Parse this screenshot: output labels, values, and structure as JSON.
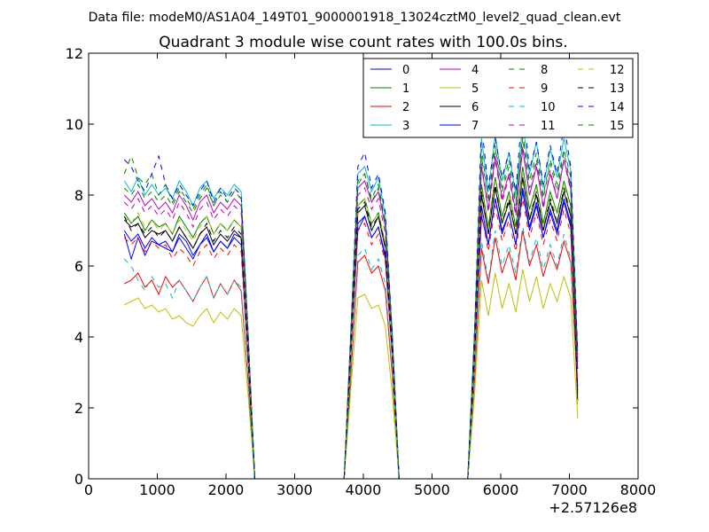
{
  "figure": {
    "suptitle": "Data file: modeM0/AS1A04_149T01_9000001918_13024cztM0_level2_quad_clean.evt"
  },
  "chart_data": {
    "type": "line",
    "title": "Quadrant 3 module wise count rates with 100.0s bins.",
    "xlabel": "",
    "ylabel": "",
    "xlim": [
      0,
      8000
    ],
    "ylim": [
      0,
      12
    ],
    "x_offset_label": "+2.57126e8",
    "xticks": [
      0,
      1000,
      2000,
      3000,
      4000,
      5000,
      6000,
      7000,
      8000
    ],
    "xtick_labels": [
      "0",
      "1000",
      "2000",
      "3000",
      "4000",
      "5000",
      "6000",
      "7000",
      "8000"
    ],
    "yticks": [
      0,
      2,
      4,
      6,
      8,
      10,
      12
    ],
    "ytick_labels": [
      "0",
      "2",
      "4",
      "6",
      "8",
      "10",
      "12"
    ],
    "legend_position": "top-right",
    "legend_columns": 4,
    "x": [
      520,
      620,
      720,
      820,
      920,
      1020,
      1120,
      1220,
      1320,
      1420,
      1520,
      1620,
      1720,
      1820,
      1920,
      2020,
      2120,
      2220,
      2320,
      2420,
      2520,
      2620,
      2720,
      2820,
      2920,
      3020,
      3120,
      3220,
      3320,
      3420,
      3520,
      3620,
      3720,
      3820,
      3920,
      4020,
      4120,
      4220,
      4320,
      4420,
      4520,
      4620,
      4720,
      4820,
      4920,
      5020,
      5120,
      5220,
      5320,
      5420,
      5520,
      5620,
      5720,
      5820,
      5920,
      6020,
      6120,
      6220,
      6320,
      6420,
      6520,
      6620,
      6720,
      6820,
      6920,
      7020,
      7120
    ],
    "series": [
      {
        "name": "0",
        "color": "#0000ff",
        "dash": "solid",
        "values": [
          6.9,
          6.2,
          6.8,
          6.3,
          6.7,
          6.6,
          6.5,
          6.4,
          6.9,
          6.7,
          6.3,
          6.6,
          6.8,
          6.4,
          6.7,
          6.5,
          6.9,
          6.8,
          3.5,
          0,
          0,
          0,
          0,
          0,
          0,
          0,
          0,
          0,
          0,
          0,
          0,
          0,
          0,
          3.7,
          7.0,
          7.4,
          6.8,
          7.1,
          6.2,
          3.5,
          0,
          0,
          0,
          0,
          0,
          0,
          0,
          0,
          0,
          0,
          0,
          3.5,
          7.4,
          6.6,
          7.9,
          7.0,
          7.5,
          6.6,
          8.2,
          7.1,
          7.8,
          6.8,
          7.6,
          7.0,
          7.9,
          7.2,
          3.1
        ]
      },
      {
        "name": "1",
        "color": "#008000",
        "dash": "solid",
        "values": [
          7.5,
          7.2,
          7.4,
          7.0,
          7.3,
          7.1,
          7.2,
          6.9,
          7.4,
          7.1,
          6.8,
          7.2,
          7.4,
          6.9,
          7.2,
          7.0,
          7.3,
          7.1,
          3.7,
          0,
          0,
          0,
          0,
          0,
          0,
          0,
          0,
          0,
          0,
          0,
          0,
          0,
          0,
          3.9,
          7.7,
          7.9,
          7.2,
          7.5,
          6.6,
          3.7,
          0,
          0,
          0,
          0,
          0,
          0,
          0,
          0,
          0,
          0,
          0,
          3.6,
          8.3,
          7.1,
          8.5,
          7.4,
          8.1,
          7.1,
          8.8,
          7.6,
          8.3,
          7.2,
          8.1,
          7.5,
          8.4,
          7.7,
          3.3
        ]
      },
      {
        "name": "2",
        "color": "#ff0000",
        "dash": "solid",
        "values": [
          5.5,
          5.6,
          5.8,
          5.4,
          5.6,
          5.2,
          5.7,
          5.4,
          5.6,
          5.3,
          5.0,
          5.4,
          5.7,
          5.1,
          5.5,
          5.2,
          5.6,
          5.3,
          2.8,
          0,
          0,
          0,
          0,
          0,
          0,
          0,
          0,
          0,
          0,
          0,
          0,
          0,
          0,
          3.0,
          6.1,
          6.3,
          5.8,
          6.0,
          5.3,
          2.9,
          0,
          0,
          0,
          0,
          0,
          0,
          0,
          0,
          0,
          0,
          0,
          2.8,
          6.5,
          5.5,
          6.8,
          5.8,
          6.4,
          5.6,
          7.0,
          6.0,
          6.6,
          5.7,
          6.4,
          5.9,
          6.7,
          6.1,
          2.5
        ]
      },
      {
        "name": "3",
        "color": "#00bfbf",
        "dash": "solid",
        "values": [
          8.4,
          8.1,
          8.5,
          8.0,
          8.3,
          8.0,
          8.2,
          7.9,
          8.4,
          8.1,
          7.7,
          8.2,
          8.4,
          7.9,
          8.2,
          8.0,
          8.3,
          8.1,
          4.2,
          0,
          0,
          0,
          0,
          0,
          0,
          0,
          0,
          0,
          0,
          0,
          0,
          0,
          0,
          4.3,
          8.6,
          8.8,
          8.1,
          8.5,
          7.4,
          4.1,
          0,
          0,
          0,
          0,
          0,
          0,
          0,
          0,
          0,
          0,
          0,
          4.2,
          9.6,
          8.1,
          9.7,
          8.4,
          9.2,
          8.0,
          10.0,
          8.6,
          9.5,
          8.2,
          9.3,
          8.5,
          9.6,
          8.7,
          3.6
        ]
      },
      {
        "name": "4",
        "color": "#bf00bf",
        "dash": "solid",
        "values": [
          8.0,
          7.8,
          8.1,
          7.7,
          7.9,
          7.6,
          7.8,
          7.5,
          8.0,
          7.7,
          7.3,
          7.8,
          8.0,
          7.5,
          7.8,
          7.6,
          7.9,
          7.7,
          4.0,
          0,
          0,
          0,
          0,
          0,
          0,
          0,
          0,
          0,
          0,
          0,
          0,
          0,
          0,
          4.1,
          8.2,
          8.4,
          7.8,
          8.1,
          7.1,
          3.9,
          0,
          0,
          0,
          0,
          0,
          0,
          0,
          0,
          0,
          0,
          0,
          3.9,
          8.8,
          7.6,
          9.1,
          7.9,
          8.6,
          7.5,
          9.3,
          8.0,
          8.8,
          7.7,
          8.6,
          7.9,
          9.0,
          8.2,
          3.4
        ]
      },
      {
        "name": "5",
        "color": "#bfbf00",
        "dash": "solid",
        "values": [
          4.9,
          5.0,
          5.1,
          4.8,
          4.9,
          4.7,
          4.8,
          4.5,
          4.6,
          4.4,
          4.3,
          4.6,
          4.8,
          4.4,
          4.7,
          4.5,
          4.8,
          4.6,
          2.4,
          0,
          0,
          0,
          0,
          0,
          0,
          0,
          0,
          0,
          0,
          0,
          0,
          0,
          0,
          2.6,
          5.1,
          5.2,
          4.8,
          4.9,
          4.3,
          2.4,
          0,
          0,
          0,
          0,
          0,
          0,
          0,
          0,
          0,
          0,
          0,
          2.4,
          5.6,
          4.6,
          5.8,
          4.8,
          5.5,
          4.7,
          5.9,
          5.0,
          5.7,
          4.8,
          5.5,
          5.0,
          5.7,
          5.1,
          1.7
        ]
      },
      {
        "name": "6",
        "color": "#000000",
        "dash": "solid",
        "values": [
          7.3,
          7.1,
          7.2,
          6.8,
          7.0,
          6.9,
          7.0,
          6.7,
          7.1,
          6.8,
          6.5,
          6.9,
          7.1,
          6.6,
          6.9,
          6.7,
          7.0,
          6.8,
          3.5,
          0,
          0,
          0,
          0,
          0,
          0,
          0,
          0,
          0,
          0,
          0,
          0,
          0,
          0,
          3.8,
          7.5,
          7.7,
          7.0,
          7.4,
          6.5,
          3.6,
          0,
          0,
          0,
          0,
          0,
          0,
          0,
          0,
          0,
          0,
          0,
          3.5,
          8.0,
          6.9,
          8.2,
          7.2,
          7.8,
          6.9,
          8.5,
          7.3,
          8.0,
          7.0,
          7.8,
          7.2,
          8.1,
          7.4,
          2.2
        ]
      },
      {
        "name": "7",
        "color": "#0000ff",
        "dash": "solid",
        "values": [
          7.0,
          6.7,
          6.9,
          6.5,
          6.8,
          6.6,
          6.7,
          6.4,
          6.8,
          6.5,
          6.2,
          6.6,
          6.9,
          6.4,
          6.7,
          6.5,
          6.8,
          6.6,
          3.4,
          0,
          0,
          0,
          0,
          0,
          0,
          0,
          0,
          0,
          0,
          0,
          0,
          0,
          0,
          3.6,
          7.2,
          7.4,
          6.8,
          7.1,
          6.3,
          3.5,
          0,
          0,
          0,
          0,
          0,
          0,
          0,
          0,
          0,
          0,
          0,
          3.4,
          7.7,
          6.6,
          7.9,
          6.9,
          7.5,
          6.6,
          8.1,
          7.0,
          7.7,
          6.8,
          7.5,
          6.9,
          7.8,
          7.1,
          2.6
        ]
      },
      {
        "name": "8",
        "color": "#008000",
        "dash": "dashed",
        "values": [
          8.6,
          9.1,
          8.5,
          8.3,
          8.6,
          8.0,
          8.3,
          7.8,
          8.2,
          7.9,
          7.6,
          8.0,
          8.3,
          7.7,
          8.1,
          7.8,
          8.1,
          7.9,
          4.1,
          0,
          0,
          0,
          0,
          0,
          0,
          0,
          0,
          0,
          0,
          0,
          0,
          0,
          0,
          4.2,
          8.4,
          8.6,
          7.9,
          8.3,
          7.2,
          4.0,
          0,
          0,
          0,
          0,
          0,
          0,
          0,
          0,
          0,
          0,
          0,
          4.0,
          9.3,
          7.9,
          9.4,
          8.2,
          9.0,
          7.8,
          9.7,
          8.4,
          9.2,
          8.0,
          9.0,
          8.3,
          9.3,
          8.5,
          3.5
        ]
      },
      {
        "name": "9",
        "color": "#ff0000",
        "dash": "dashed",
        "values": [
          6.8,
          6.6,
          6.8,
          6.4,
          6.7,
          6.5,
          6.6,
          6.2,
          6.5,
          6.3,
          6.0,
          6.4,
          6.6,
          6.2,
          6.5,
          6.3,
          6.6,
          6.4,
          3.3,
          0,
          0,
          0,
          0,
          0,
          0,
          0,
          0,
          0,
          0,
          0,
          0,
          0,
          0,
          3.5,
          7.0,
          7.2,
          6.6,
          6.9,
          6.1,
          3.4,
          0,
          0,
          0,
          0,
          0,
          0,
          0,
          0,
          0,
          0,
          0,
          3.3,
          7.5,
          6.4,
          7.7,
          6.7,
          7.3,
          6.4,
          7.9,
          6.8,
          7.5,
          6.6,
          7.3,
          6.7,
          7.6,
          6.9,
          2.7
        ]
      },
      {
        "name": "10",
        "color": "#00bfbf",
        "dash": "dashed",
        "values": [
          6.2,
          6.0,
          5.6,
          5.3,
          5.7,
          5.4,
          5.5,
          5.1,
          5.6,
          5.3,
          5.0,
          5.4,
          5.7,
          5.1,
          5.5,
          5.2,
          5.6,
          5.4,
          2.8,
          0,
          0,
          0,
          0,
          0,
          0,
          0,
          0,
          0,
          0,
          0,
          0,
          0,
          0,
          3.1,
          6.3,
          6.5,
          5.9,
          6.2,
          5.5,
          3.0,
          0,
          0,
          0,
          0,
          0,
          0,
          0,
          0,
          0,
          0,
          0,
          2.9,
          6.7,
          5.6,
          7.0,
          6.0,
          6.6,
          5.8,
          7.1,
          6.1,
          6.8,
          5.9,
          6.6,
          6.0,
          6.9,
          6.2,
          2.4
        ]
      },
      {
        "name": "11",
        "color": "#bf00bf",
        "dash": "dashed",
        "values": [
          7.8,
          7.6,
          7.9,
          7.5,
          7.7,
          7.4,
          7.6,
          7.3,
          7.8,
          7.5,
          7.1,
          7.6,
          7.8,
          7.3,
          7.6,
          7.4,
          7.7,
          7.5,
          3.9,
          0,
          0,
          0,
          0,
          0,
          0,
          0,
          0,
          0,
          0,
          0,
          0,
          0,
          0,
          4.0,
          8.0,
          8.2,
          7.6,
          7.9,
          6.9,
          3.8,
          0,
          0,
          0,
          0,
          0,
          0,
          0,
          0,
          0,
          0,
          0,
          3.8,
          8.9,
          7.5,
          9.0,
          7.8,
          8.5,
          7.4,
          9.4,
          8.0,
          8.9,
          7.6,
          8.7,
          7.9,
          9.0,
          8.1,
          3.3
        ]
      },
      {
        "name": "12",
        "color": "#bfbf00",
        "dash": "dashed",
        "values": [
          7.4,
          7.2,
          7.5,
          7.1,
          7.3,
          7.0,
          7.2,
          6.9,
          7.3,
          7.0,
          6.7,
          7.1,
          7.4,
          6.9,
          7.2,
          7.0,
          7.3,
          7.1,
          3.7,
          0,
          0,
          0,
          0,
          0,
          0,
          0,
          0,
          0,
          0,
          0,
          0,
          0,
          0,
          3.8,
          7.7,
          7.9,
          7.2,
          7.5,
          6.6,
          3.6,
          0,
          0,
          0,
          0,
          0,
          0,
          0,
          0,
          0,
          0,
          0,
          3.6,
          8.2,
          7.0,
          8.4,
          7.3,
          8.0,
          7.0,
          8.6,
          7.4,
          8.2,
          7.1,
          8.0,
          7.3,
          8.3,
          7.5,
          2.0
        ]
      },
      {
        "name": "13",
        "color": "#000000",
        "dash": "dashed",
        "values": [
          7.4,
          7.0,
          7.2,
          6.9,
          7.1,
          6.8,
          7.0,
          6.7,
          7.1,
          6.8,
          6.5,
          6.9,
          7.2,
          6.7,
          7.0,
          6.8,
          7.1,
          6.9,
          3.6,
          0,
          0,
          0,
          0,
          0,
          0,
          0,
          0,
          0,
          0,
          0,
          0,
          0,
          0,
          3.7,
          7.6,
          7.8,
          7.1,
          7.4,
          6.5,
          3.6,
          0,
          0,
          0,
          0,
          0,
          0,
          0,
          0,
          0,
          0,
          0,
          3.5,
          8.1,
          6.9,
          8.3,
          7.2,
          7.9,
          6.9,
          8.5,
          7.3,
          8.1,
          7.0,
          7.9,
          7.2,
          8.2,
          7.4,
          2.3
        ]
      },
      {
        "name": "14",
        "color": "#0000ff",
        "dash": "dashed",
        "values": [
          9.0,
          8.8,
          8.4,
          8.1,
          8.6,
          9.1,
          8.3,
          7.9,
          8.3,
          8.0,
          7.7,
          8.1,
          8.4,
          7.8,
          8.2,
          7.9,
          8.2,
          8.0,
          4.2,
          0,
          0,
          0,
          0,
          0,
          0,
          0,
          0,
          0,
          0,
          0,
          0,
          0,
          0,
          4.3,
          8.8,
          9.2,
          8.2,
          8.6,
          7.5,
          4.1,
          0,
          0,
          0,
          0,
          0,
          0,
          0,
          0,
          0,
          0,
          0,
          4.2,
          10.0,
          8.2,
          9.6,
          8.5,
          9.2,
          8.1,
          10.6,
          8.7,
          9.5,
          8.3,
          9.4,
          8.6,
          10.0,
          8.8,
          3.6
        ]
      },
      {
        "name": "15",
        "color": "#008000",
        "dash": "dashed",
        "values": [
          8.2,
          8.0,
          8.3,
          7.9,
          8.1,
          7.8,
          8.0,
          7.7,
          8.1,
          7.8,
          7.5,
          7.9,
          8.2,
          7.7,
          8.0,
          7.8,
          8.1,
          7.9,
          4.1,
          0,
          0,
          0,
          0,
          0,
          0,
          0,
          0,
          0,
          0,
          0,
          0,
          0,
          0,
          4.1,
          8.3,
          8.6,
          7.8,
          8.2,
          7.2,
          4.0,
          0,
          0,
          0,
          0,
          0,
          0,
          0,
          0,
          0,
          0,
          0,
          4.0,
          9.1,
          7.8,
          9.3,
          8.1,
          8.8,
          7.7,
          9.6,
          8.2,
          9.0,
          7.9,
          8.9,
          8.1,
          9.2,
          8.3,
          3.4
        ]
      }
    ]
  }
}
